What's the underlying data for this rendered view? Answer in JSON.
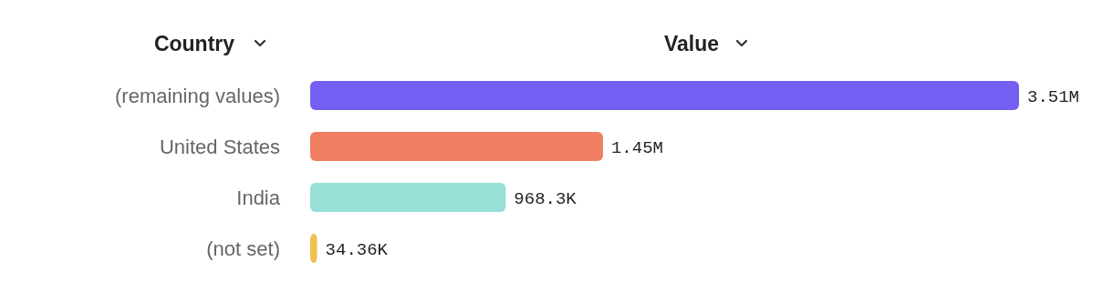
{
  "chart_data": {
    "type": "bar",
    "orientation": "horizontal",
    "ylabel": "Country",
    "xlabel": "Value",
    "categories": [
      "(remaining values)",
      "United States",
      "India",
      "(not set)"
    ],
    "values": [
      3510000,
      1450000,
      968300,
      34360
    ],
    "colors": [
      "#7360f2",
      "#ef7e63",
      "#96e0d8",
      "#f0c050"
    ],
    "value_labels": [
      "3.51M",
      "1.45M",
      "968.3K",
      "34.36K"
    ]
  }
}
